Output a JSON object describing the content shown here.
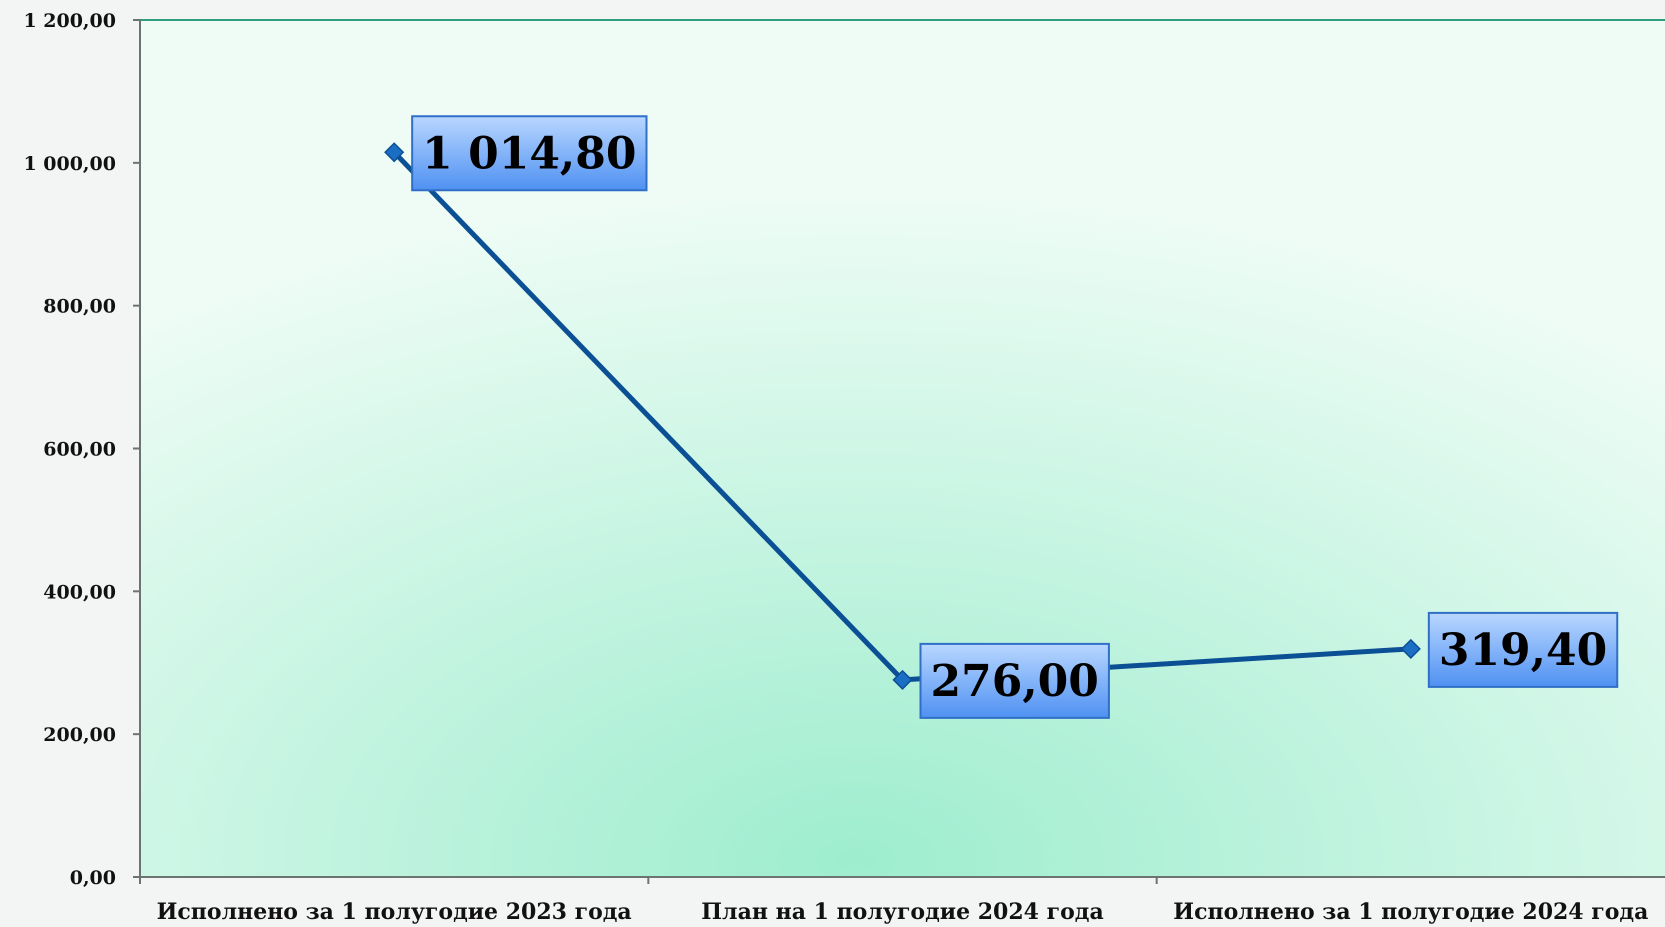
{
  "chart_data": {
    "type": "line",
    "categories": [
      "Исполнено за 1 полугодие 2023 года",
      "План на 1 полугодие 2024 года",
      "Исполнено за 1 полугодие 2024 года"
    ],
    "values": [
      1014.8,
      276.0,
      319.4
    ],
    "data_labels": [
      "1 014,80",
      "276,00",
      "319,40"
    ],
    "ylim": [
      0,
      1200
    ],
    "yticks": [
      0,
      200,
      400,
      600,
      800,
      1000,
      1200
    ],
    "ytick_labels": [
      "0,00",
      "200,00",
      "400,00",
      "600,00",
      "800,00",
      "1 000,00",
      "1 200,00"
    ],
    "title": "",
    "xlabel": "",
    "ylabel": "",
    "grid": false,
    "legend": "none",
    "colors": {
      "line": "#0b4f94",
      "marker": "#1a6fc4",
      "label_fill_top": "#b9d7ff",
      "label_fill_bottom": "#4f91f2",
      "label_border": "#2f6fc8",
      "plot_center": "#9eedcf",
      "plot_edge": "#eefcf5",
      "axis": "#6b7470",
      "top_border": "#2e9f7c"
    }
  }
}
